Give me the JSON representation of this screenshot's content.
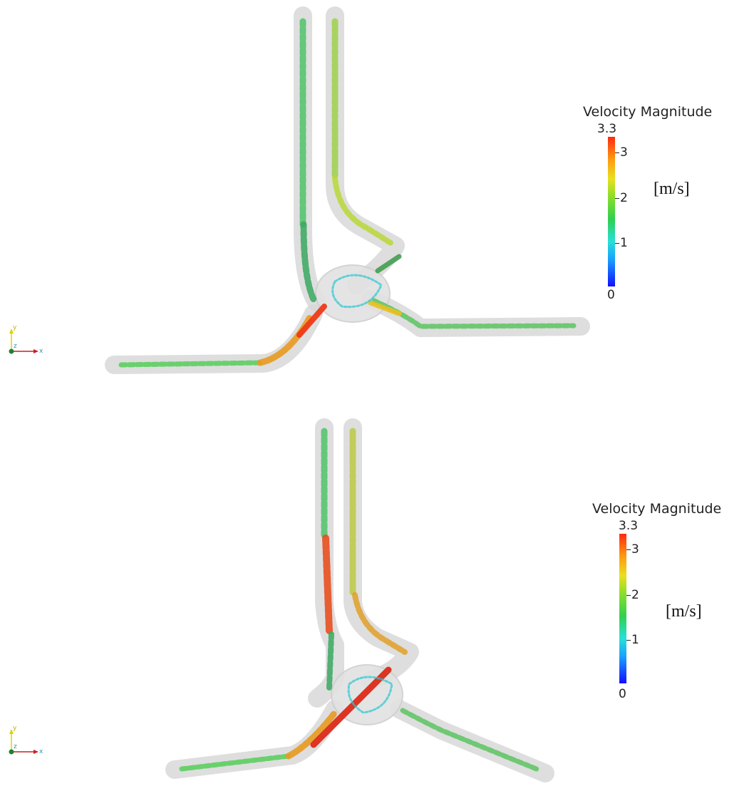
{
  "panels": [
    {
      "id": "top",
      "legend": {
        "title": "Velocity Magnitude",
        "max_label": "3.3",
        "ticks": [
          "3",
          "2",
          "1",
          "0"
        ],
        "unit": "[m/s]"
      },
      "axes": {
        "x": "x",
        "y": "y",
        "z": "z"
      }
    },
    {
      "id": "bottom",
      "legend": {
        "title": "Velocity Magnitude",
        "max_label": "3.3",
        "ticks": [
          "3",
          "2",
          "1",
          "0"
        ],
        "unit": "[m/s]"
      },
      "axes": {
        "x": "x",
        "y": "y",
        "z": "z"
      }
    }
  ],
  "colormap": {
    "min_value": 0,
    "max_value": 3.3,
    "stops": [
      "#1010ff",
      "#1aa0ff",
      "#28e0d8",
      "#30d050",
      "#8ade2a",
      "#e8e020",
      "#ff9a10",
      "#ff2a10"
    ]
  }
}
